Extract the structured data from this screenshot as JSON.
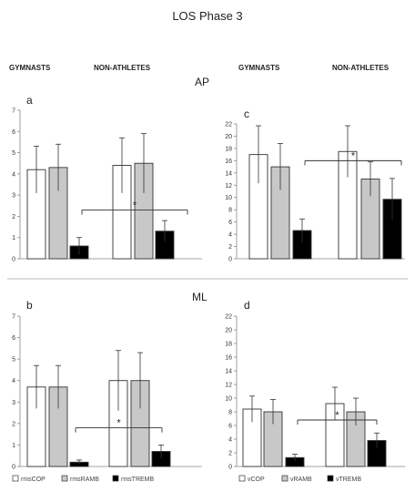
{
  "title": "LOS Phase 3",
  "group_labels": [
    "GYMNASTS",
    "NON-ATHLETES"
  ],
  "row_labels": [
    "AP",
    "ML"
  ],
  "colors": {
    "fills": [
      "#ffffff",
      "#c8c8c8",
      "#000000"
    ],
    "edge": "#333333",
    "divider": "#bbbbbb"
  },
  "chart_data": [
    {
      "panel": "a",
      "type": "bar",
      "row": "AP",
      "categories": [
        "GYMNASTS",
        "NON-ATHLETES"
      ],
      "ylim": [
        0,
        7
      ],
      "yticks": [
        0,
        1,
        2,
        3,
        4,
        5,
        6,
        7
      ],
      "series": [
        {
          "name": "rmsCOP",
          "values": [
            4.2,
            4.4
          ],
          "errors": [
            1.1,
            1.3
          ]
        },
        {
          "name": "rmsRAMB",
          "values": [
            4.3,
            4.5
          ],
          "errors": [
            1.1,
            1.4
          ]
        },
        {
          "name": "rmsTREMB",
          "values": [
            0.6,
            1.3
          ],
          "errors": [
            0.4,
            0.5
          ]
        }
      ],
      "significance": [
        {
          "label": "*",
          "y": 2.3
        }
      ]
    },
    {
      "panel": "c",
      "type": "bar",
      "row": "AP",
      "categories": [
        "GYMNASTS",
        "NON-ATHLETES"
      ],
      "ylim": [
        0,
        22
      ],
      "yticks": [
        0,
        2,
        4,
        6,
        8,
        10,
        12,
        14,
        16,
        18,
        20,
        22
      ],
      "series": [
        {
          "name": "vCOP",
          "values": [
            17.0,
            17.5
          ],
          "errors": [
            4.7,
            4.2
          ]
        },
        {
          "name": "vRAMB",
          "values": [
            15.0,
            13.0
          ],
          "errors": [
            3.8,
            2.8
          ]
        },
        {
          "name": "vTREMB",
          "values": [
            4.6,
            9.7
          ],
          "errors": [
            1.9,
            3.4
          ]
        }
      ],
      "significance": [
        {
          "label": "*",
          "y": 16.0
        }
      ]
    },
    {
      "panel": "b",
      "type": "bar",
      "row": "ML",
      "categories": [
        "GYMNASTS",
        "NON-ATHLETES"
      ],
      "ylim": [
        0,
        7
      ],
      "yticks": [
        0,
        1,
        2,
        3,
        4,
        5,
        6,
        7
      ],
      "series": [
        {
          "name": "rmsCOP",
          "values": [
            3.7,
            4.0
          ],
          "errors": [
            1.0,
            1.4
          ]
        },
        {
          "name": "rmsRAMB",
          "values": [
            3.7,
            4.0
          ],
          "errors": [
            1.0,
            1.3
          ]
        },
        {
          "name": "rmsTREMB",
          "values": [
            0.2,
            0.7
          ],
          "errors": [
            0.1,
            0.3
          ]
        }
      ],
      "significance": [
        {
          "label": "*",
          "y": 1.8
        }
      ],
      "legend": [
        "rmsCOP",
        "rmsRAMB",
        "rmsTREMB"
      ]
    },
    {
      "panel": "d",
      "type": "bar",
      "row": "ML",
      "categories": [
        "GYMNASTS",
        "NON-ATHLETES"
      ],
      "ylim": [
        0,
        22
      ],
      "yticks": [
        0,
        2,
        4,
        6,
        8,
        10,
        12,
        14,
        16,
        18,
        20,
        22
      ],
      "series": [
        {
          "name": "vCOP",
          "values": [
            8.4,
            9.2
          ],
          "errors": [
            1.9,
            2.4
          ]
        },
        {
          "name": "vRAMB",
          "values": [
            8.0,
            8.0
          ],
          "errors": [
            1.8,
            2.0
          ]
        },
        {
          "name": "vTREMB",
          "values": [
            1.3,
            3.8
          ],
          "errors": [
            0.5,
            1.1
          ]
        }
      ],
      "significance": [
        {
          "label": "*",
          "y": 6.8
        }
      ],
      "legend": [
        "vCOP",
        "vRAMB",
        "vTREMB"
      ]
    }
  ]
}
